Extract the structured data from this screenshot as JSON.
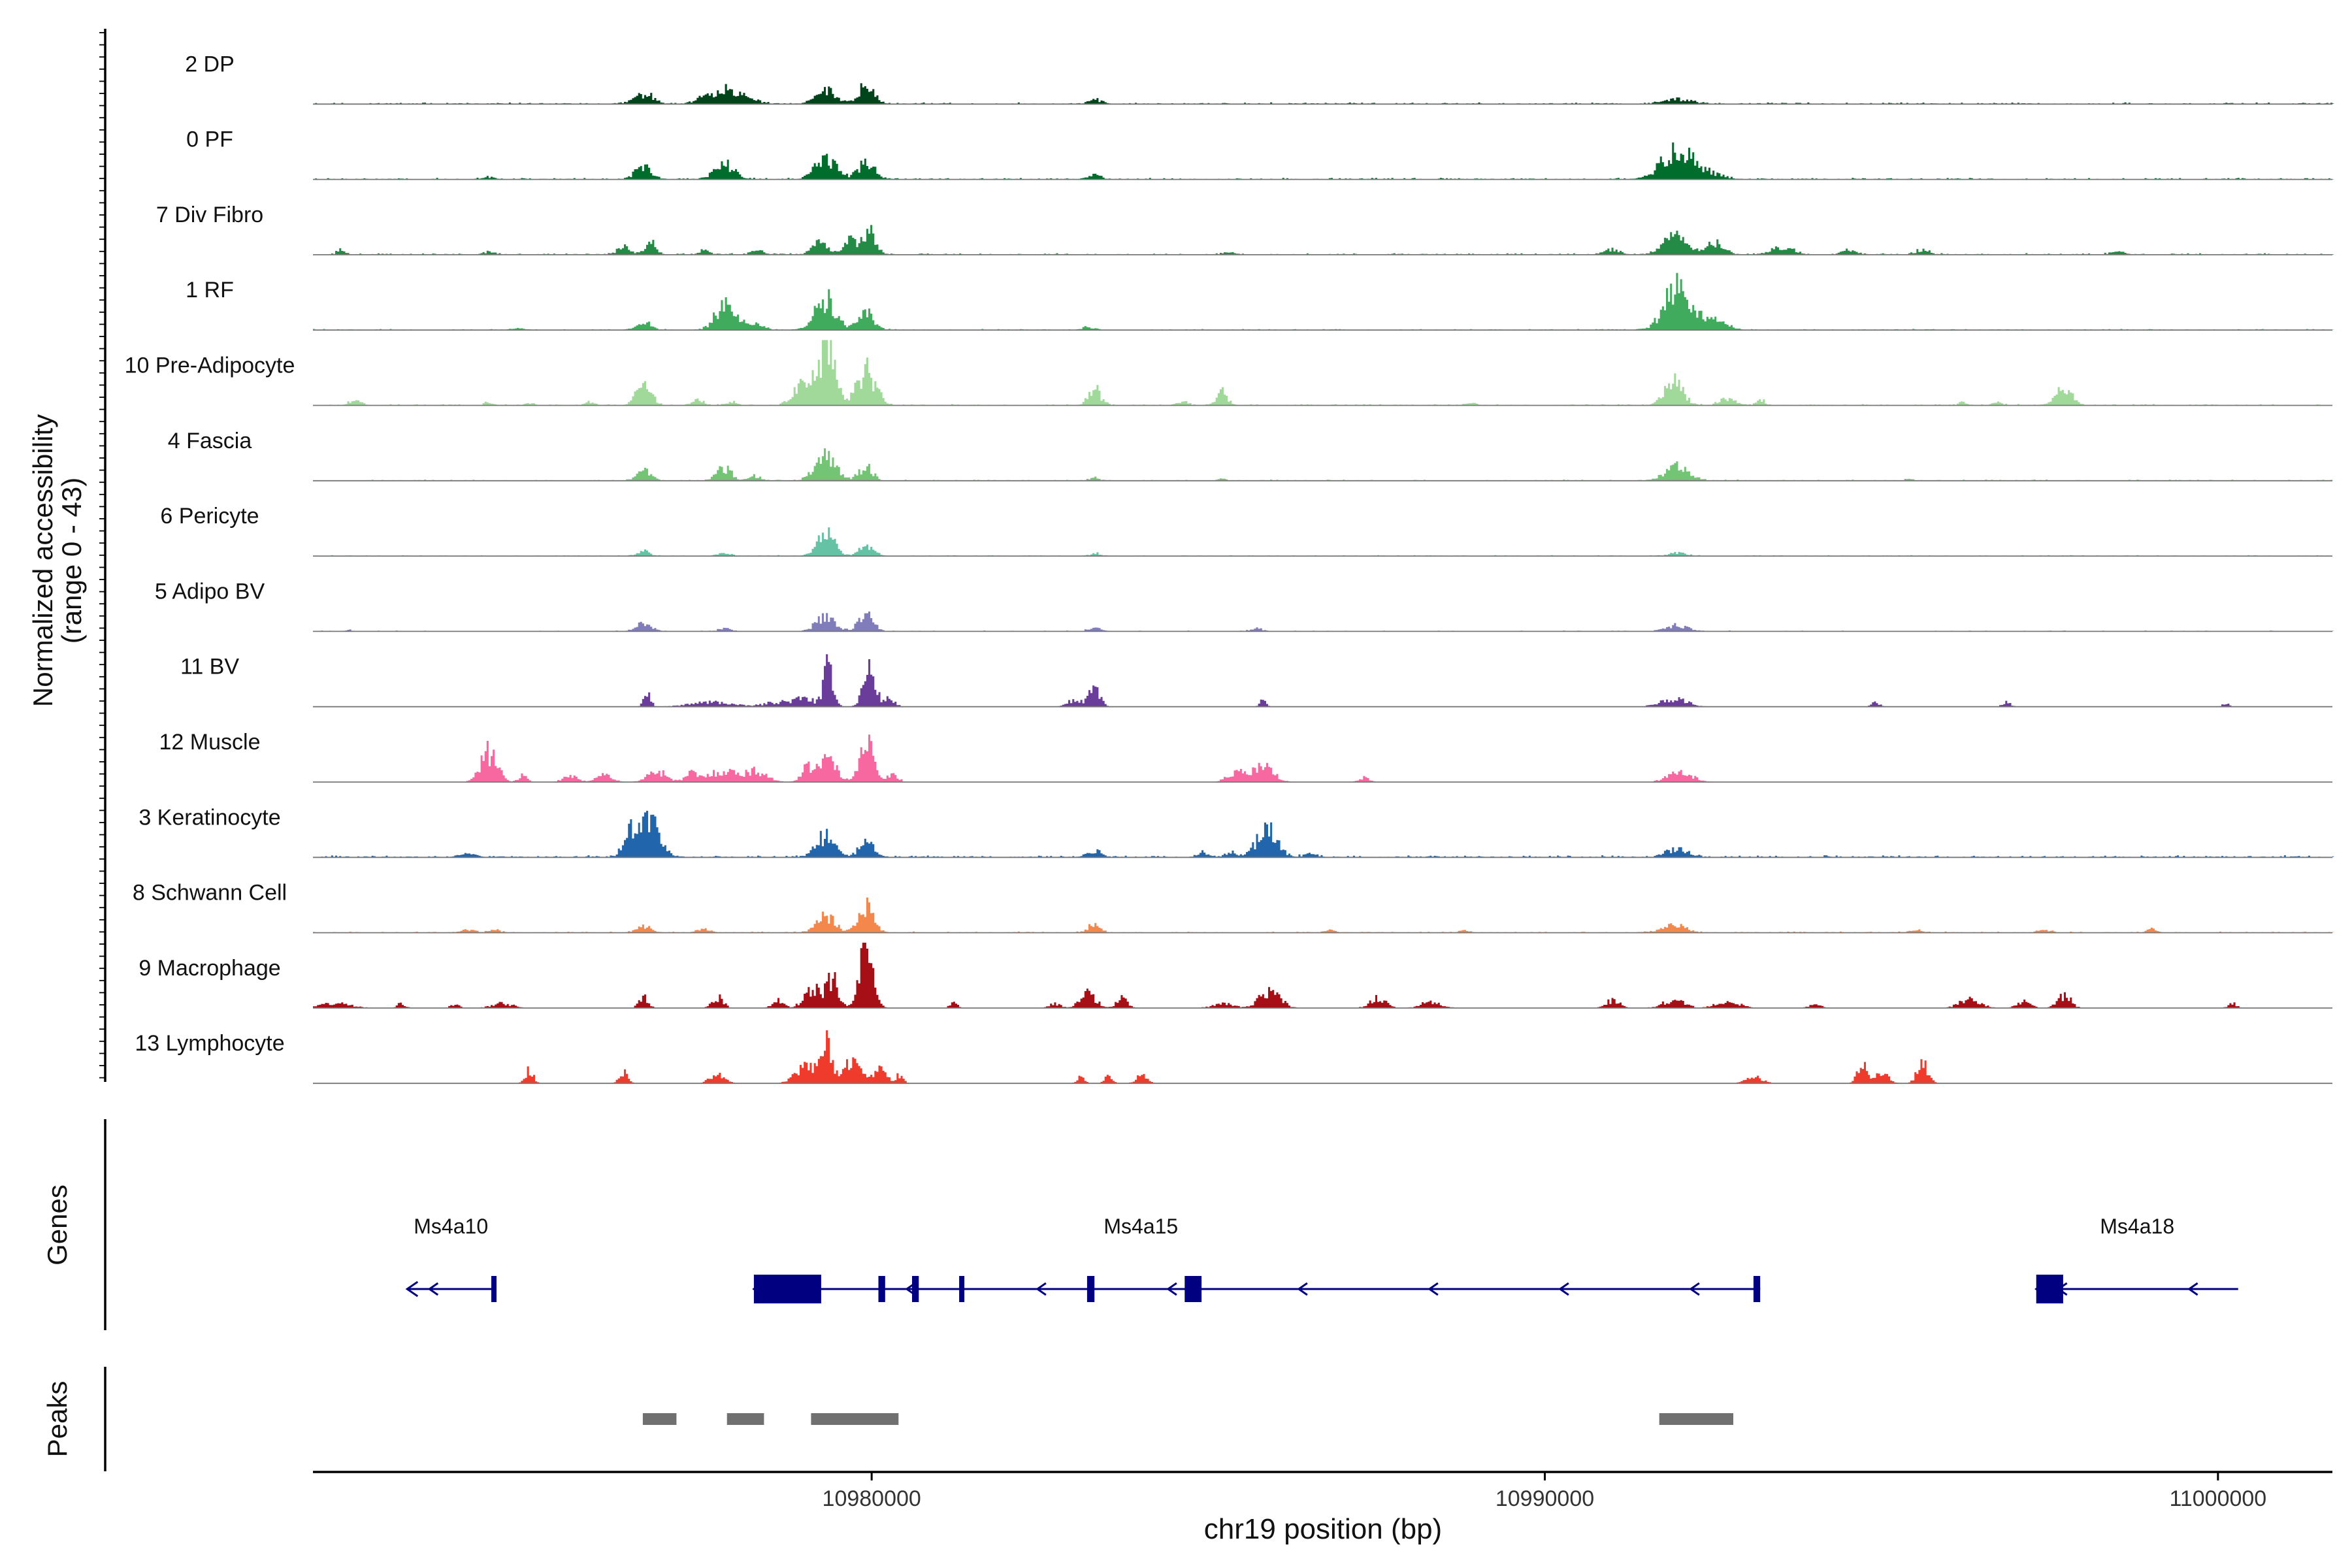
{
  "chart_data": {
    "type": "area",
    "title": "",
    "ylabel_line1": "Normalized accessibility",
    "ylabel_line2": "(range 0 - 43)",
    "xlabel": "chr19 position (bp)",
    "xlim": [
      10971700,
      11001700
    ],
    "xticks": [
      10980000,
      10990000,
      11000000
    ],
    "xtick_labels": [
      "10980000",
      "10990000",
      "11000000"
    ],
    "track_ymax": 43,
    "genes_label": "Genes",
    "peaks_label": "Peaks",
    "series": [
      {
        "name": "2 DP",
        "color": "#00441b",
        "noise": 0.7,
        "seed": 11,
        "peaks": [
          [
            10976600,
            6,
            140
          ],
          [
            10977500,
            4,
            120
          ],
          [
            10977850,
            10,
            150
          ],
          [
            10978200,
            3,
            120
          ],
          [
            10979300,
            9,
            140
          ],
          [
            10979900,
            11,
            120
          ],
          [
            10983300,
            3,
            90
          ],
          [
            10991950,
            3,
            200
          ]
        ]
      },
      {
        "name": "0 PF",
        "color": "#006d2c",
        "noise": 0.7,
        "seed": 23,
        "peaks": [
          [
            10974300,
            1.5,
            80
          ],
          [
            10976600,
            8,
            120
          ],
          [
            10977800,
            10,
            140
          ],
          [
            10979300,
            14,
            150
          ],
          [
            10979900,
            11,
            120
          ],
          [
            10983300,
            3,
            90
          ],
          [
            10991950,
            18,
            220
          ],
          [
            10992400,
            4,
            200
          ]
        ]
      },
      {
        "name": "7 Div Fibro",
        "color": "#238b45",
        "noise": 0.7,
        "seed": 37,
        "peaks": [
          [
            10972100,
            3,
            60
          ],
          [
            10974300,
            2,
            70
          ],
          [
            10976300,
            5,
            90
          ],
          [
            10976700,
            8,
            80
          ],
          [
            10977500,
            2.5,
            90
          ],
          [
            10978300,
            3,
            80
          ],
          [
            10979200,
            9,
            110
          ],
          [
            10979650,
            9,
            100
          ],
          [
            10979950,
            14,
            100
          ],
          [
            10985300,
            1.5,
            80
          ],
          [
            10991000,
            3,
            120
          ],
          [
            10991900,
            12,
            170
          ],
          [
            10992500,
            7,
            140
          ],
          [
            10993500,
            5,
            150
          ],
          [
            10994500,
            3,
            100
          ],
          [
            10995600,
            3,
            100
          ],
          [
            10998500,
            2,
            90
          ]
        ]
      },
      {
        "name": "1 RF",
        "color": "#41ab5d",
        "noise": 0.5,
        "seed": 41,
        "peaks": [
          [
            10974700,
            1,
            90
          ],
          [
            10976600,
            5,
            100
          ],
          [
            10977800,
            15,
            140
          ],
          [
            10978200,
            5,
            130
          ],
          [
            10979300,
            20,
            150
          ],
          [
            10979900,
            13,
            110
          ],
          [
            10983200,
            1.5,
            90
          ],
          [
            10991950,
            26,
            190
          ],
          [
            10992500,
            10,
            150
          ]
        ]
      },
      {
        "name": "10 Pre-Adipocyte",
        "color": "#a1d99b",
        "noise": 0.6,
        "seed": 53,
        "peaks": [
          [
            10972300,
            3,
            90
          ],
          [
            10974300,
            2,
            60
          ],
          [
            10974900,
            1.5,
            60
          ],
          [
            10975800,
            2,
            60
          ],
          [
            10976600,
            17,
            100
          ],
          [
            10977400,
            3,
            90
          ],
          [
            10977900,
            2,
            80
          ],
          [
            10979000,
            16,
            150
          ],
          [
            10979330,
            38,
            110
          ],
          [
            10979900,
            22,
            140
          ],
          [
            10983300,
            10,
            90
          ],
          [
            10984600,
            3,
            70
          ],
          [
            10985200,
            8,
            80
          ],
          [
            10988900,
            1.5,
            70
          ],
          [
            10991900,
            18,
            130
          ],
          [
            10992700,
            5,
            110
          ],
          [
            10993200,
            3,
            60
          ],
          [
            10996200,
            2,
            60
          ],
          [
            10996700,
            2,
            60
          ],
          [
            10997700,
            12,
            110
          ]
        ]
      },
      {
        "name": "4 Fascia",
        "color": "#74c476",
        "noise": 0.5,
        "seed": 67,
        "peaks": [
          [
            10976600,
            7,
            110
          ],
          [
            10977800,
            8,
            110
          ],
          [
            10978250,
            3,
            80
          ],
          [
            10979300,
            15,
            150
          ],
          [
            10979900,
            9,
            100
          ],
          [
            10983300,
            2,
            70
          ],
          [
            10985200,
            1,
            60
          ],
          [
            10991950,
            9,
            170
          ],
          [
            10995400,
            1,
            60
          ]
        ]
      },
      {
        "name": "6 Pericyte",
        "color": "#66c2a4",
        "noise": 0.4,
        "seed": 71,
        "peaks": [
          [
            10976600,
            3,
            90
          ],
          [
            10977800,
            2,
            90
          ],
          [
            10979300,
            14,
            130
          ],
          [
            10979900,
            6,
            110
          ],
          [
            10983300,
            2,
            70
          ],
          [
            10991950,
            2,
            120
          ]
        ]
      },
      {
        "name": "5 Adipo BV",
        "color": "#807dba",
        "noise": 0.4,
        "seed": 83,
        "peaks": [
          [
            10972200,
            1,
            60
          ],
          [
            10976600,
            5,
            110
          ],
          [
            10977800,
            2,
            90
          ],
          [
            10979300,
            9,
            140
          ],
          [
            10979900,
            10,
            110
          ],
          [
            10983300,
            3,
            80
          ],
          [
            10985700,
            2,
            80
          ],
          [
            10991950,
            4,
            160
          ]
        ]
      },
      {
        "name": "11 BV",
        "color": "#6a3d9a",
        "noise": 0.0,
        "seed": 97,
        "peaks": [
          [
            10976650,
            9,
            50
          ],
          [
            10977600,
            3,
            300
          ],
          [
            10978600,
            3,
            200
          ],
          [
            10979000,
            5,
            150
          ],
          [
            10979350,
            26,
            70
          ],
          [
            10979950,
            24,
            90
          ],
          [
            10980250,
            5,
            80
          ],
          [
            10983000,
            4,
            110
          ],
          [
            10983300,
            12,
            80
          ],
          [
            10985800,
            4,
            50
          ],
          [
            10991900,
            5,
            200
          ],
          [
            10994900,
            3,
            60
          ],
          [
            10996850,
            3,
            60
          ],
          [
            11000100,
            2,
            50
          ]
        ]
      },
      {
        "name": "12 Muscle",
        "color": "#f768a1",
        "noise": 0.0,
        "seed": 101,
        "peaks": [
          [
            10974300,
            19,
            120
          ],
          [
            10974800,
            5,
            60
          ],
          [
            10975500,
            4,
            100
          ],
          [
            10976000,
            5,
            120
          ],
          [
            10976800,
            7,
            140
          ],
          [
            10977300,
            5,
            80
          ],
          [
            10977800,
            7,
            250
          ],
          [
            10978300,
            6,
            150
          ],
          [
            10979000,
            8,
            80
          ],
          [
            10979300,
            16,
            140
          ],
          [
            10979900,
            28,
            100
          ],
          [
            10980300,
            5,
            80
          ],
          [
            10985400,
            6,
            130
          ],
          [
            10985800,
            10,
            150
          ],
          [
            10987300,
            3,
            80
          ],
          [
            10992000,
            6,
            180
          ]
        ]
      },
      {
        "name": "3 Keratinocyte",
        "color": "#2166ac",
        "noise": 0.9,
        "seed": 113,
        "peaks": [
          [
            10974000,
            2,
            120
          ],
          [
            10976400,
            14,
            100
          ],
          [
            10976700,
            25,
            150
          ],
          [
            10979300,
            13,
            140
          ],
          [
            10979900,
            10,
            110
          ],
          [
            10983300,
            4,
            100
          ],
          [
            10984900,
            3,
            90
          ],
          [
            10985300,
            3,
            80
          ],
          [
            10985850,
            18,
            150
          ],
          [
            10986500,
            2,
            100
          ],
          [
            10991950,
            5,
            170
          ]
        ]
      },
      {
        "name": "8 Schwann Cell",
        "color": "#f4874b",
        "noise": 0.5,
        "seed": 127,
        "peaks": [
          [
            10974000,
            2,
            100
          ],
          [
            10974400,
            1.5,
            80
          ],
          [
            10976600,
            4,
            100
          ],
          [
            10977500,
            2,
            100
          ],
          [
            10979300,
            11,
            130
          ],
          [
            10979900,
            16,
            110
          ],
          [
            10983300,
            6,
            80
          ],
          [
            10986800,
            1.5,
            70
          ],
          [
            10988800,
            1.5,
            70
          ],
          [
            10991900,
            5,
            160
          ],
          [
            10995500,
            2,
            90
          ],
          [
            10997400,
            2,
            90
          ],
          [
            10999000,
            2,
            70
          ]
        ]
      },
      {
        "name": "9 Macrophage",
        "color": "#a50f15",
        "noise": 0.0,
        "seed": 131,
        "peaks": [
          [
            10972000,
            3,
            250
          ],
          [
            10973000,
            3,
            60
          ],
          [
            10973800,
            3,
            60
          ],
          [
            10974500,
            3,
            150
          ],
          [
            10976600,
            7,
            70
          ],
          [
            10977700,
            7,
            80
          ],
          [
            10978600,
            5,
            80
          ],
          [
            10979100,
            13,
            120
          ],
          [
            10979400,
            18,
            90
          ],
          [
            10979900,
            35,
            100
          ],
          [
            10981200,
            3,
            60
          ],
          [
            10982700,
            3,
            80
          ],
          [
            10983200,
            9,
            120
          ],
          [
            10983700,
            6,
            80
          ],
          [
            10985200,
            3,
            150
          ],
          [
            10985900,
            11,
            150
          ],
          [
            10987500,
            6,
            120
          ],
          [
            10988300,
            4,
            150
          ],
          [
            10991000,
            5,
            100
          ],
          [
            10991900,
            5,
            160
          ],
          [
            10992700,
            5,
            160
          ],
          [
            10994000,
            3,
            80
          ],
          [
            10996300,
            6,
            150
          ],
          [
            10997100,
            4,
            100
          ],
          [
            10997700,
            8,
            100
          ],
          [
            11000200,
            3,
            60
          ]
        ]
      },
      {
        "name": "13 Lymphocyte",
        "color": "#ef3b2c",
        "noise": 0.0,
        "seed": 139,
        "peaks": [
          [
            10974900,
            9,
            60
          ],
          [
            10976300,
            8,
            60
          ],
          [
            10977700,
            5,
            120
          ],
          [
            10979000,
            12,
            150
          ],
          [
            10979300,
            26,
            80
          ],
          [
            10979700,
            15,
            130
          ],
          [
            10980100,
            8,
            100
          ],
          [
            10980400,
            5,
            60
          ],
          [
            10983100,
            4,
            60
          ],
          [
            10983500,
            4,
            60
          ],
          [
            10984000,
            5,
            80
          ],
          [
            10993100,
            4,
            120
          ],
          [
            10994700,
            11,
            80
          ],
          [
            10995000,
            6,
            100
          ],
          [
            10995600,
            14,
            80
          ]
        ]
      }
    ],
    "genes": [
      {
        "name": "Ms4a10",
        "start": 10973100,
        "end": 10974400,
        "strand": "-",
        "exons": [
          [
            10974350,
            10974400
          ]
        ]
      },
      {
        "name": "Ms4a15",
        "start": 10978250,
        "end": 10993200,
        "strand": "-",
        "exons": [
          [
            10978250,
            10979250
          ],
          [
            10980100,
            10980200
          ],
          [
            10980600,
            10980700
          ],
          [
            10981300,
            10981360
          ],
          [
            10983200,
            10983310
          ],
          [
            10984650,
            10984900
          ],
          [
            10993100,
            10993200
          ]
        ]
      },
      {
        "name": "Ms4a18",
        "start": 10997300,
        "end": 11000300,
        "strand": "-",
        "exons": [
          [
            10997300,
            10997700
          ]
        ]
      }
    ],
    "peak_regions": [
      [
        10976600,
        10977100
      ],
      [
        10977850,
        10978400
      ],
      [
        10979100,
        10980400
      ],
      [
        10991700,
        10992800
      ]
    ]
  }
}
